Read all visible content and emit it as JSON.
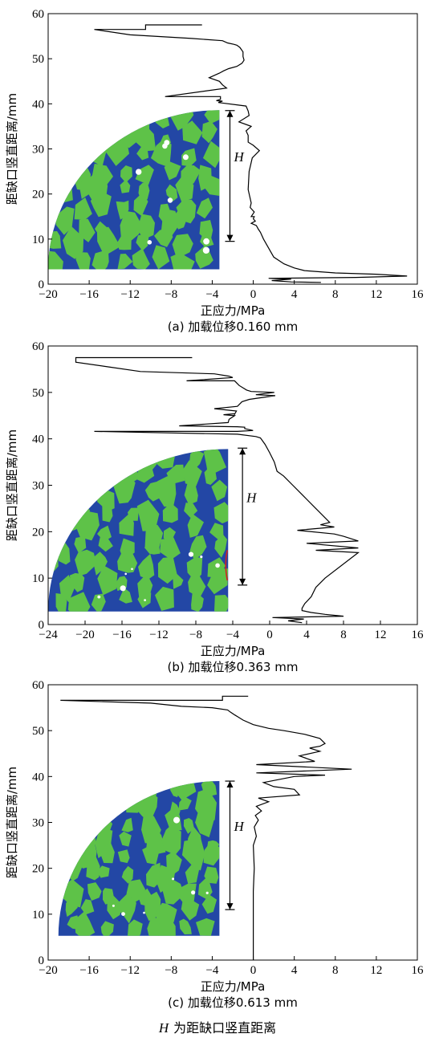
{
  "figure_note": {
    "symbol": "H",
    "text": "为距缺口竖直距离"
  },
  "chart_data": [
    {
      "type": "line",
      "caption": "(a) 加载位移0.160 mm",
      "xlabel": "正应力/MPa",
      "ylabel": "距缺口竖直距离/mm",
      "xlim": [
        -20,
        16
      ],
      "ylim": [
        0,
        60
      ],
      "xticks": [
        -20,
        -16,
        -12,
        -8,
        -4,
        0,
        4,
        8,
        12,
        16
      ],
      "yticks": [
        0,
        10,
        20,
        30,
        40,
        50,
        60
      ],
      "grid": false,
      "legend": "none",
      "annotation": {
        "label": "H",
        "from_y": 9.5,
        "to_y": 38.5
      },
      "inset": {
        "type": "mesoscale-specimen-quarter",
        "x_left": -20,
        "x_right": -3.3,
        "y_bottom": 3.3,
        "y_top": 38.6,
        "matrix_color": "#2347a5",
        "aggregate_color": "#5ec248",
        "pore_color": "#ffffff"
      },
      "x": [
        -5,
        -10.5,
        -10.5,
        -15.5,
        -12,
        -6,
        -3,
        -2.5,
        -1.9,
        -1.6,
        -1.3,
        -1,
        -1,
        -0.9,
        -1.1,
        -1.6,
        -2.4,
        -2.9,
        -3.3,
        -4.3,
        -3.3,
        -3,
        -2.6,
        -8.6,
        -3.2,
        -3.2,
        -3.6,
        -3,
        -3.4,
        -3.1,
        -0.7,
        -0.5,
        -0.4,
        -1.4,
        -0.2,
        -0.7,
        -0.5,
        -0.5,
        0,
        0.6,
        -0.1,
        -0.4,
        -0.5,
        -0.2,
        -0.3,
        0.1,
        -0.2,
        0.1,
        0,
        0.2,
        -0.2,
        0.3,
        0.5,
        0.7,
        1,
        1.5,
        2,
        3,
        4,
        5,
        8,
        12,
        15,
        10,
        1.5,
        3.7,
        1.8,
        3.7,
        6.6
      ],
      "y": [
        57.5,
        57.5,
        56.5,
        56.5,
        55.3,
        54.5,
        54,
        53.5,
        53.2,
        53,
        52.5,
        51.5,
        50.5,
        49.7,
        49,
        48.3,
        47.8,
        47.3,
        46.8,
        45.8,
        45,
        44.2,
        43.5,
        41.6,
        41.6,
        41,
        40.7,
        40.6,
        40.3,
        40.2,
        39.5,
        38.4,
        37.4,
        36,
        35,
        34,
        33,
        31.5,
        30.8,
        29.6,
        28,
        25,
        21,
        18,
        17,
        16,
        15,
        15,
        14.5,
        14,
        13.5,
        13,
        12.2,
        11.5,
        10,
        8,
        6,
        4.5,
        3.6,
        3,
        2.5,
        2.2,
        1.8,
        1.5,
        1.3,
        1.1,
        0.8,
        0.5,
        0.4
      ]
    },
    {
      "type": "line",
      "caption": "(b) 加载位移0.363 mm",
      "xlabel": "正应力/MPa",
      "ylabel": "距缺口竖直距离/mm",
      "xlim": [
        -24,
        16
      ],
      "ylim": [
        0,
        60
      ],
      "xticks": [
        -24,
        -20,
        -16,
        -12,
        -8,
        -4,
        0,
        4,
        8,
        12,
        16
      ],
      "yticks": [
        0,
        10,
        20,
        30,
        40,
        50,
        60
      ],
      "grid": false,
      "legend": "none",
      "annotation": {
        "label": "H",
        "from_y": 8.5,
        "to_y": 38
      },
      "inset": {
        "type": "mesoscale-specimen-quarter",
        "x_left": -24,
        "x_right": -4.5,
        "y_bottom": 2.8,
        "y_top": 37.8,
        "matrix_color": "#2347a5",
        "aggregate_color": "#5ec248",
        "pore_color": "#ffffff",
        "crack_color": "#d42020"
      },
      "x": [
        -8.4,
        -21,
        -21,
        -17.5,
        -14,
        -6,
        -4.4,
        -4,
        -9,
        -3.8,
        -3.3,
        -2.5,
        -2,
        0.5,
        -1.5,
        0.6,
        -2.2,
        -3,
        -3.5,
        -6,
        -3.6,
        -3.8,
        -3.8,
        -5,
        -3.8,
        -4.4,
        -4.5,
        -9.8,
        -3.5,
        -2.7,
        -2.7,
        -1.8,
        -3.5,
        -19,
        -3.5,
        -1.5,
        -1,
        -0.5,
        0,
        0.5,
        0.8,
        1.5,
        2.5,
        3.5,
        5,
        6.5,
        5.5,
        7,
        3,
        7,
        8,
        9.6,
        4,
        9.6,
        5,
        9.6,
        6,
        5,
        4.5,
        3.8,
        3.5,
        3.5,
        4.5,
        6,
        8,
        0.3,
        3.7,
        2,
        3.5
      ],
      "y": [
        57.5,
        57.5,
        56.5,
        55.5,
        54.5,
        54,
        53.5,
        53.2,
        52.5,
        52.5,
        51.5,
        50.5,
        50.2,
        50,
        49.5,
        49.3,
        48.5,
        48,
        47,
        46.5,
        46,
        45.3,
        45.4,
        45.2,
        45,
        44.2,
        43.5,
        42.8,
        42.6,
        42.5,
        42.2,
        41.8,
        41.6,
        41.6,
        41,
        40.5,
        40.2,
        38.8,
        37,
        35,
        33,
        32,
        30,
        28,
        25,
        22,
        21.5,
        21,
        20.3,
        19.5,
        19,
        18,
        17.5,
        16.5,
        16,
        15.5,
        10,
        8,
        6,
        4.5,
        3.5,
        3,
        2.6,
        2.2,
        1.8,
        1.5,
        1.2,
        0.8,
        0.4
      ]
    },
    {
      "type": "line",
      "caption": "(c) 加载位移0.613 mm",
      "xlabel": "正应力/MPa",
      "ylabel": "距缺口竖直距离/mm",
      "xlim": [
        -20,
        16
      ],
      "ylim": [
        0,
        60
      ],
      "xticks": [
        -20,
        -16,
        -12,
        -8,
        -4,
        0,
        4,
        8,
        12,
        16
      ],
      "yticks": [
        0,
        10,
        20,
        30,
        40,
        50,
        60
      ],
      "grid": false,
      "legend": "none",
      "annotation": {
        "label": "H",
        "from_y": 11,
        "to_y": 39
      },
      "inset": {
        "type": "mesoscale-specimen-quarter",
        "x_left": -19,
        "x_right": -3.3,
        "y_bottom": 5.3,
        "y_top": 39,
        "matrix_color": "#2347a5",
        "aggregate_color": "#5ec248",
        "pore_color": "#ffffff"
      },
      "x": [
        -0.5,
        -3,
        -3,
        -18.8,
        -10,
        -7,
        -4,
        -2.5,
        -2.2,
        -1.8,
        -1.5,
        -1,
        0,
        1.5,
        3,
        5,
        6.5,
        7,
        6.5,
        5.5,
        6.5,
        4.5,
        6,
        0.3,
        9.6,
        0.3,
        7,
        4,
        1,
        2,
        4,
        4.5,
        0.5,
        1.5,
        0.3,
        0.8,
        0.2,
        0.5,
        0.1,
        0.3,
        0,
        0.1,
        0,
        0,
        0
      ],
      "y": [
        57.5,
        57.5,
        56.6,
        56.6,
        56,
        55.3,
        55,
        54.5,
        54,
        53.4,
        53,
        52.3,
        51.3,
        50.5,
        50,
        49.2,
        48.3,
        47.2,
        46.6,
        46.2,
        45.5,
        44.5,
        43.3,
        42.6,
        41.6,
        40.8,
        40.3,
        40,
        38.7,
        37.8,
        37.2,
        36,
        35.3,
        34.5,
        33.5,
        32.5,
        31.5,
        30.5,
        29,
        27,
        25,
        20,
        15,
        5,
        0
      ]
    }
  ]
}
